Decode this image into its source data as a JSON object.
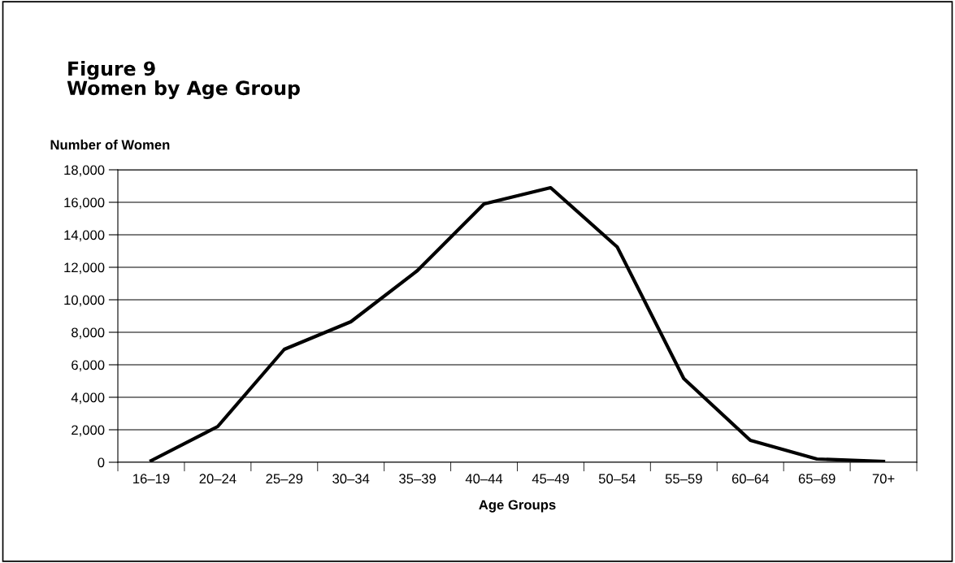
{
  "chart_data": {
    "type": "line",
    "title": "Figure 9\nWomen by Age Group",
    "xlabel": "Age Groups",
    "ylabel": "Number of Women",
    "categories": [
      "16–19",
      "20–24",
      "25–29",
      "30–34",
      "35–39",
      "40–44",
      "45–49",
      "50–54",
      "55–59",
      "60–64",
      "65–69",
      "70+"
    ],
    "series": [
      {
        "color": "#000000",
        "values": [
          100,
          2200,
          6950,
          8650,
          11800,
          15900,
          16900,
          13250,
          5150,
          1350,
          200,
          50
        ]
      }
    ],
    "ylim": [
      0,
      18000
    ],
    "yticks": [
      0,
      {
        "value": 2000,
        "label": "2,000"
      },
      {
        "value": 4000,
        "label": "4,000"
      },
      {
        "value": 6000,
        "label": "6,000"
      },
      {
        "value": 8000,
        "label": "8,000"
      },
      {
        "value": 10000,
        "label": "10,000"
      },
      {
        "value": 12000,
        "label": "12,000"
      },
      {
        "value": 14000,
        "label": "14,000"
      },
      {
        "value": 16000,
        "label": "16,000"
      },
      {
        "value": 18000,
        "label": "18,000"
      }
    ],
    "grid": "y",
    "marker": "none",
    "line_style": "solid"
  }
}
